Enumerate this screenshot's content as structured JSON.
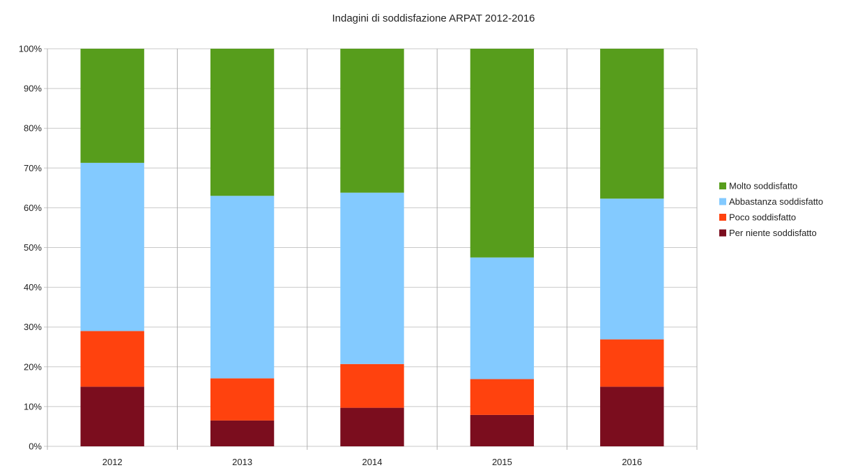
{
  "chart_data": {
    "type": "bar",
    "stacked": true,
    "percent": true,
    "title": "Indagini di soddisfazione ARPAT 2012-2016",
    "xlabel": "",
    "ylabel": "",
    "categories": [
      "2012",
      "2013",
      "2014",
      "2015",
      "2016"
    ],
    "ylim": [
      0,
      100
    ],
    "yticks": [
      "0%",
      "10%",
      "20%",
      "30%",
      "40%",
      "50%",
      "60%",
      "70%",
      "80%",
      "90%",
      "100%"
    ],
    "grid": true,
    "legend_position": "right",
    "series": [
      {
        "name": "Per niente soddisfatto",
        "color": "#7b0d1e",
        "values": [
          15.0,
          6.5,
          9.7,
          7.9,
          15.0
        ]
      },
      {
        "name": "Poco soddisfatto",
        "color": "#ff420e",
        "values": [
          14.0,
          10.6,
          11.0,
          9.0,
          11.9
        ]
      },
      {
        "name": "Abbastanza soddisfatto",
        "color": "#83caff",
        "values": [
          42.3,
          45.9,
          43.1,
          30.6,
          35.4
        ]
      },
      {
        "name": "Molto soddisfatto",
        "color": "#579d1c",
        "values": [
          28.7,
          37.0,
          36.2,
          52.5,
          37.7
        ]
      }
    ]
  }
}
